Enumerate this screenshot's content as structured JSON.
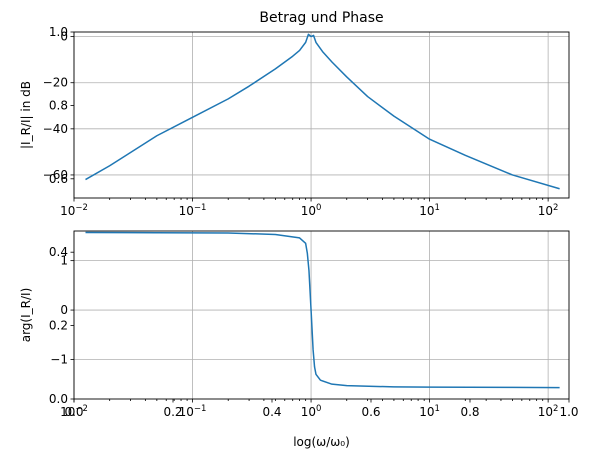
{
  "chart_data": [
    {
      "type": "line",
      "title": "Betrag und Phase",
      "xlabel": "",
      "ylabel": "|I_R/I| in dB",
      "xscale": "log",
      "xlim": [
        0.01,
        150
      ],
      "ylim": [
        -70,
        2
      ],
      "grid": true,
      "line_color": "#1f77b4",
      "xticks": [
        {
          "label": "10",
          "exp": "−2",
          "value": 0.01
        },
        {
          "label": "10",
          "exp": "−1",
          "value": 0.1
        },
        {
          "label": "10",
          "exp": "0",
          "value": 1
        },
        {
          "label": "10",
          "exp": "1",
          "value": 10
        },
        {
          "label": "10",
          "exp": "2",
          "value": 100
        }
      ],
      "yticks": [
        {
          "label": "0",
          "value": 0
        },
        {
          "label": "−20",
          "value": -20
        },
        {
          "label": "−40",
          "value": -40
        },
        {
          "label": "−60",
          "value": -60
        }
      ],
      "series": [
        {
          "x": [
            0.0125,
            0.02,
            0.05,
            0.1,
            0.2,
            0.3,
            0.5,
            0.7,
            0.8,
            0.9,
            0.95,
            1.0,
            1.05,
            1.1,
            1.25,
            1.5,
            2,
            3,
            5,
            10,
            20,
            50,
            125
          ],
          "y": [
            -62,
            -56,
            -43,
            -35,
            -27,
            -21.5,
            -14,
            -8.5,
            -6,
            -2.5,
            1,
            0,
            0.5,
            -2.5,
            -6.5,
            -11,
            -17.5,
            -26,
            -34.5,
            -44.5,
            -51.5,
            -60,
            -66
          ]
        }
      ]
    },
    {
      "type": "line",
      "title": "",
      "xlabel": "log(ω/ω₀)",
      "ylabel": "arg(I_R/I)",
      "xscale": "log",
      "xlim": [
        0.01,
        150
      ],
      "ylim": [
        -1.8,
        1.6
      ],
      "grid": true,
      "line_color": "#1f77b4",
      "xticks": [
        {
          "label": "10",
          "exp": "−2",
          "value": 0.01
        },
        {
          "label": "10",
          "exp": "−1",
          "value": 0.1
        },
        {
          "label": "10",
          "exp": "0",
          "value": 1
        },
        {
          "label": "10",
          "exp": "1",
          "value": 10
        },
        {
          "label": "10",
          "exp": "2",
          "value": 100
        }
      ],
      "yticks": [
        {
          "label": "1",
          "value": 1
        },
        {
          "label": "0",
          "value": 0
        },
        {
          "label": "−1",
          "value": -1
        }
      ],
      "series": [
        {
          "x": [
            0.0125,
            0.05,
            0.2,
            0.5,
            0.8,
            0.9,
            0.93,
            0.96,
            0.98,
            1.0,
            1.02,
            1.04,
            1.07,
            1.1,
            1.2,
            1.5,
            2,
            5,
            10,
            50,
            125
          ],
          "y": [
            1.57,
            1.565,
            1.56,
            1.53,
            1.46,
            1.35,
            1.15,
            0.8,
            0.4,
            0,
            -0.4,
            -0.8,
            -1.15,
            -1.3,
            -1.42,
            -1.5,
            -1.53,
            -1.555,
            -1.56,
            -1.565,
            -1.57
          ]
        }
      ]
    }
  ],
  "overlay_axis": {
    "xlim": [
      0,
      1
    ],
    "ylim": [
      0,
      1
    ],
    "xticks": [
      "0.0",
      "0.2",
      "0.4",
      "0.6",
      "0.8",
      "1.0"
    ],
    "yticks": [
      "0.0",
      "0.2",
      "0.4",
      "0.6",
      "0.8",
      "1.0"
    ]
  }
}
